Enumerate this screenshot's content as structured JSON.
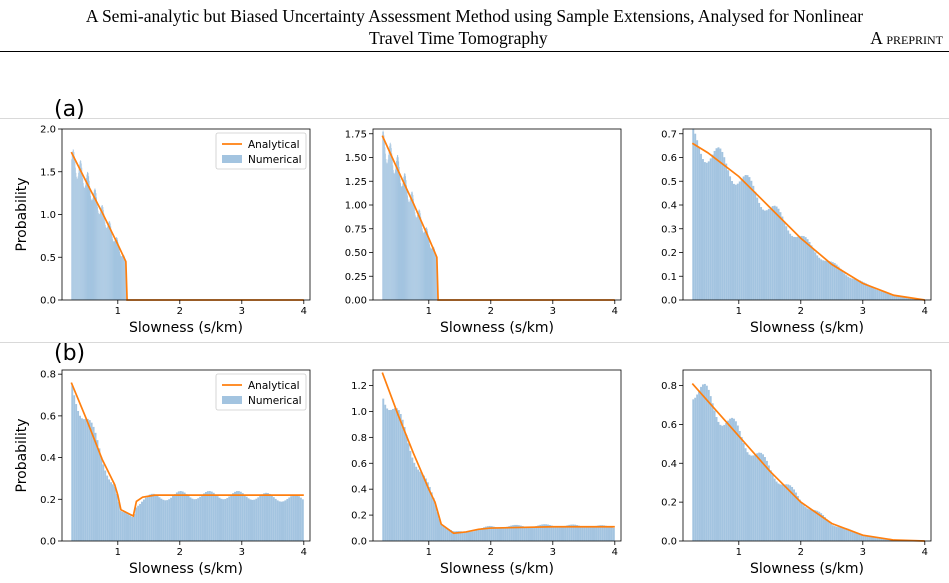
{
  "header": {
    "title_line1": "A Semi-analytic but Biased Uncertainty Assessment Method using Sample Extensions, Analysed for Nonlinear",
    "title_line2": "Travel Time Tomography",
    "preprint": "A preprint"
  },
  "panel_labels": [
    "(a)",
    "(b)"
  ],
  "legend": {
    "analytical": "Analytical",
    "numerical": "Numerical"
  },
  "colors": {
    "analytical": "#ff7f0e",
    "numerical": "#a3c4e0"
  },
  "chart_data": [
    {
      "type": "bar",
      "row": "a",
      "title": "",
      "xlabel": "Slowness (s/km)",
      "ylabel": "Probability",
      "xlim": [
        0.1,
        4.1
      ],
      "ylim": [
        0,
        2.0
      ],
      "xticks": [
        1,
        2,
        3,
        4
      ],
      "yticks": [
        0.0,
        0.5,
        1.0,
        1.5,
        2.0
      ],
      "ytick_labels": [
        "0.0",
        "0.5",
        "1.0",
        "1.5",
        "2.0"
      ],
      "legend": true,
      "hist_range": [
        0.25,
        1.2
      ],
      "series": [
        {
          "name": "Analytical",
          "kind": "line",
          "x": [
            0.25,
            0.5,
            0.75,
            1.0,
            1.13,
            1.15,
            1.2,
            2.0,
            3.0,
            4.0
          ],
          "values": [
            1.73,
            1.37,
            1.02,
            0.65,
            0.45,
            0.0,
            0.0,
            0.0,
            0.0,
            0.0
          ]
        },
        {
          "name": "Numerical",
          "kind": "histogram",
          "x": [
            0.25,
            0.5,
            0.75,
            1.0,
            1.13,
            1.15
          ],
          "values": [
            1.65,
            1.4,
            1.02,
            0.65,
            0.43,
            0.0
          ]
        }
      ]
    },
    {
      "type": "bar",
      "row": "a",
      "title": "",
      "xlabel": "Slowness (s/km)",
      "ylabel": "",
      "xlim": [
        0.1,
        4.1
      ],
      "ylim": [
        0,
        1.8
      ],
      "xticks": [
        1,
        2,
        3,
        4
      ],
      "yticks": [
        0.0,
        0.25,
        0.5,
        0.75,
        1.0,
        1.25,
        1.5,
        1.75
      ],
      "ytick_labels": [
        "0.00",
        "0.25",
        "0.50",
        "0.75",
        "1.00",
        "1.25",
        "1.50",
        "1.75"
      ],
      "legend": false,
      "hist_range": [
        0.25,
        1.2
      ],
      "series": [
        {
          "name": "",
          "kind": "line",
          "x": [
            0.25,
            0.5,
            0.75,
            1.0,
            1.13,
            1.15,
            1.2,
            2.0,
            3.0,
            4.0
          ],
          "values": [
            1.73,
            1.37,
            1.02,
            0.65,
            0.45,
            0.0,
            0.0,
            0.0,
            0.0,
            0.0
          ]
        },
        {
          "name": "",
          "kind": "histogram",
          "x": [
            0.25,
            0.5,
            0.75,
            1.0,
            1.13,
            1.15
          ],
          "values": [
            1.65,
            1.4,
            1.02,
            0.65,
            0.43,
            0.0
          ]
        }
      ]
    },
    {
      "type": "bar",
      "row": "a",
      "title": "",
      "xlabel": "Slowness (s/km)",
      "ylabel": "",
      "xlim": [
        0.1,
        4.1
      ],
      "ylim": [
        0,
        0.72
      ],
      "xticks": [
        1,
        2,
        3,
        4
      ],
      "yticks": [
        0.0,
        0.1,
        0.2,
        0.3,
        0.4,
        0.5,
        0.6,
        0.7
      ],
      "ytick_labels": [
        "0.0",
        "0.1",
        "0.2",
        "0.3",
        "0.4",
        "0.5",
        "0.6",
        "0.7"
      ],
      "legend": false,
      "hist_range": [
        0.25,
        4.0
      ],
      "series": [
        {
          "name": "",
          "kind": "line",
          "x": [
            0.25,
            0.5,
            1.0,
            1.5,
            2.0,
            2.5,
            3.0,
            3.5,
            4.0
          ],
          "values": [
            0.66,
            0.62,
            0.52,
            0.39,
            0.26,
            0.15,
            0.07,
            0.02,
            0.0
          ]
        },
        {
          "name": "",
          "kind": "histogram",
          "x": [
            0.25,
            0.5,
            1.0,
            1.5,
            2.0,
            2.5,
            3.0,
            3.5,
            4.0
          ],
          "values": [
            0.67,
            0.63,
            0.52,
            0.39,
            0.26,
            0.15,
            0.07,
            0.02,
            0.0
          ]
        }
      ]
    },
    {
      "type": "bar",
      "row": "b",
      "title": "",
      "xlabel": "Slowness (s/km)",
      "ylabel": "Probability",
      "xlim": [
        0.1,
        4.1
      ],
      "ylim": [
        0,
        0.82
      ],
      "xticks": [
        1,
        2,
        3,
        4
      ],
      "yticks": [
        0.0,
        0.2,
        0.4,
        0.6,
        0.8
      ],
      "ytick_labels": [
        "0.0",
        "0.2",
        "0.4",
        "0.6",
        "0.8"
      ],
      "legend": true,
      "hist_range": [
        0.25,
        4.0
      ],
      "series": [
        {
          "name": "Analytical",
          "kind": "line",
          "x": [
            0.25,
            0.5,
            0.75,
            0.95,
            1.0,
            1.05,
            1.25,
            1.3,
            1.4,
            1.6,
            2.0,
            3.0,
            4.0
          ],
          "values": [
            0.76,
            0.58,
            0.39,
            0.27,
            0.22,
            0.15,
            0.12,
            0.19,
            0.21,
            0.22,
            0.22,
            0.22,
            0.22
          ]
        },
        {
          "name": "Numerical",
          "kind": "histogram",
          "x": [
            0.25,
            0.5,
            0.75,
            0.95,
            1.0,
            1.05,
            1.25,
            1.3,
            1.4,
            1.6,
            2.0,
            3.0,
            4.0
          ],
          "values": [
            0.75,
            0.59,
            0.39,
            0.27,
            0.2,
            0.13,
            0.12,
            0.18,
            0.2,
            0.21,
            0.22,
            0.22,
            0.2
          ]
        }
      ]
    },
    {
      "type": "bar",
      "row": "b",
      "title": "",
      "xlabel": "Slowness (s/km)",
      "ylabel": "",
      "xlim": [
        0.1,
        4.1
      ],
      "ylim": [
        0,
        1.32
      ],
      "xticks": [
        1,
        2,
        3,
        4
      ],
      "yticks": [
        0.0,
        0.2,
        0.4,
        0.6,
        0.8,
        1.0,
        1.2
      ],
      "ytick_labels": [
        "0.0",
        "0.2",
        "0.4",
        "0.6",
        "0.8",
        "1.0",
        "1.2"
      ],
      "legend": false,
      "hist_range": [
        0.25,
        4.0
      ],
      "series": [
        {
          "name": "",
          "kind": "line",
          "x": [
            0.25,
            0.5,
            0.75,
            1.0,
            1.1,
            1.2,
            1.4,
            1.6,
            1.8,
            2.0,
            3.0,
            4.0
          ],
          "values": [
            1.3,
            0.98,
            0.68,
            0.4,
            0.3,
            0.13,
            0.06,
            0.07,
            0.09,
            0.1,
            0.11,
            0.11
          ]
        },
        {
          "name": "",
          "kind": "histogram",
          "x": [
            0.25,
            0.5,
            0.75,
            1.0,
            1.1,
            1.2,
            1.4,
            1.6,
            1.8,
            2.0,
            3.0,
            4.0
          ],
          "values": [
            1.2,
            0.95,
            0.68,
            0.4,
            0.29,
            0.14,
            0.07,
            0.07,
            0.09,
            0.11,
            0.12,
            0.11
          ]
        }
      ]
    },
    {
      "type": "bar",
      "row": "b",
      "title": "",
      "xlabel": "Slowness (s/km)",
      "ylabel": "",
      "xlim": [
        0.1,
        4.1
      ],
      "ylim": [
        0,
        0.88
      ],
      "xticks": [
        1,
        2,
        3,
        4
      ],
      "yticks": [
        0.0,
        0.2,
        0.4,
        0.6,
        0.8
      ],
      "ytick_labels": [
        "0.0",
        "0.2",
        "0.4",
        "0.6",
        "0.8"
      ],
      "legend": false,
      "hist_range": [
        0.25,
        4.0
      ],
      "series": [
        {
          "name": "",
          "kind": "line",
          "x": [
            0.25,
            0.5,
            1.0,
            1.5,
            2.0,
            2.5,
            3.0,
            3.5,
            4.0
          ],
          "values": [
            0.81,
            0.72,
            0.54,
            0.36,
            0.2,
            0.09,
            0.03,
            0.005,
            0.0
          ]
        },
        {
          "name": "",
          "kind": "histogram",
          "x": [
            0.25,
            0.5,
            1.0,
            1.5,
            2.0,
            2.5,
            3.0,
            3.5,
            4.0
          ],
          "values": [
            0.8,
            0.73,
            0.55,
            0.37,
            0.21,
            0.09,
            0.03,
            0.005,
            0.0
          ]
        }
      ]
    }
  ]
}
